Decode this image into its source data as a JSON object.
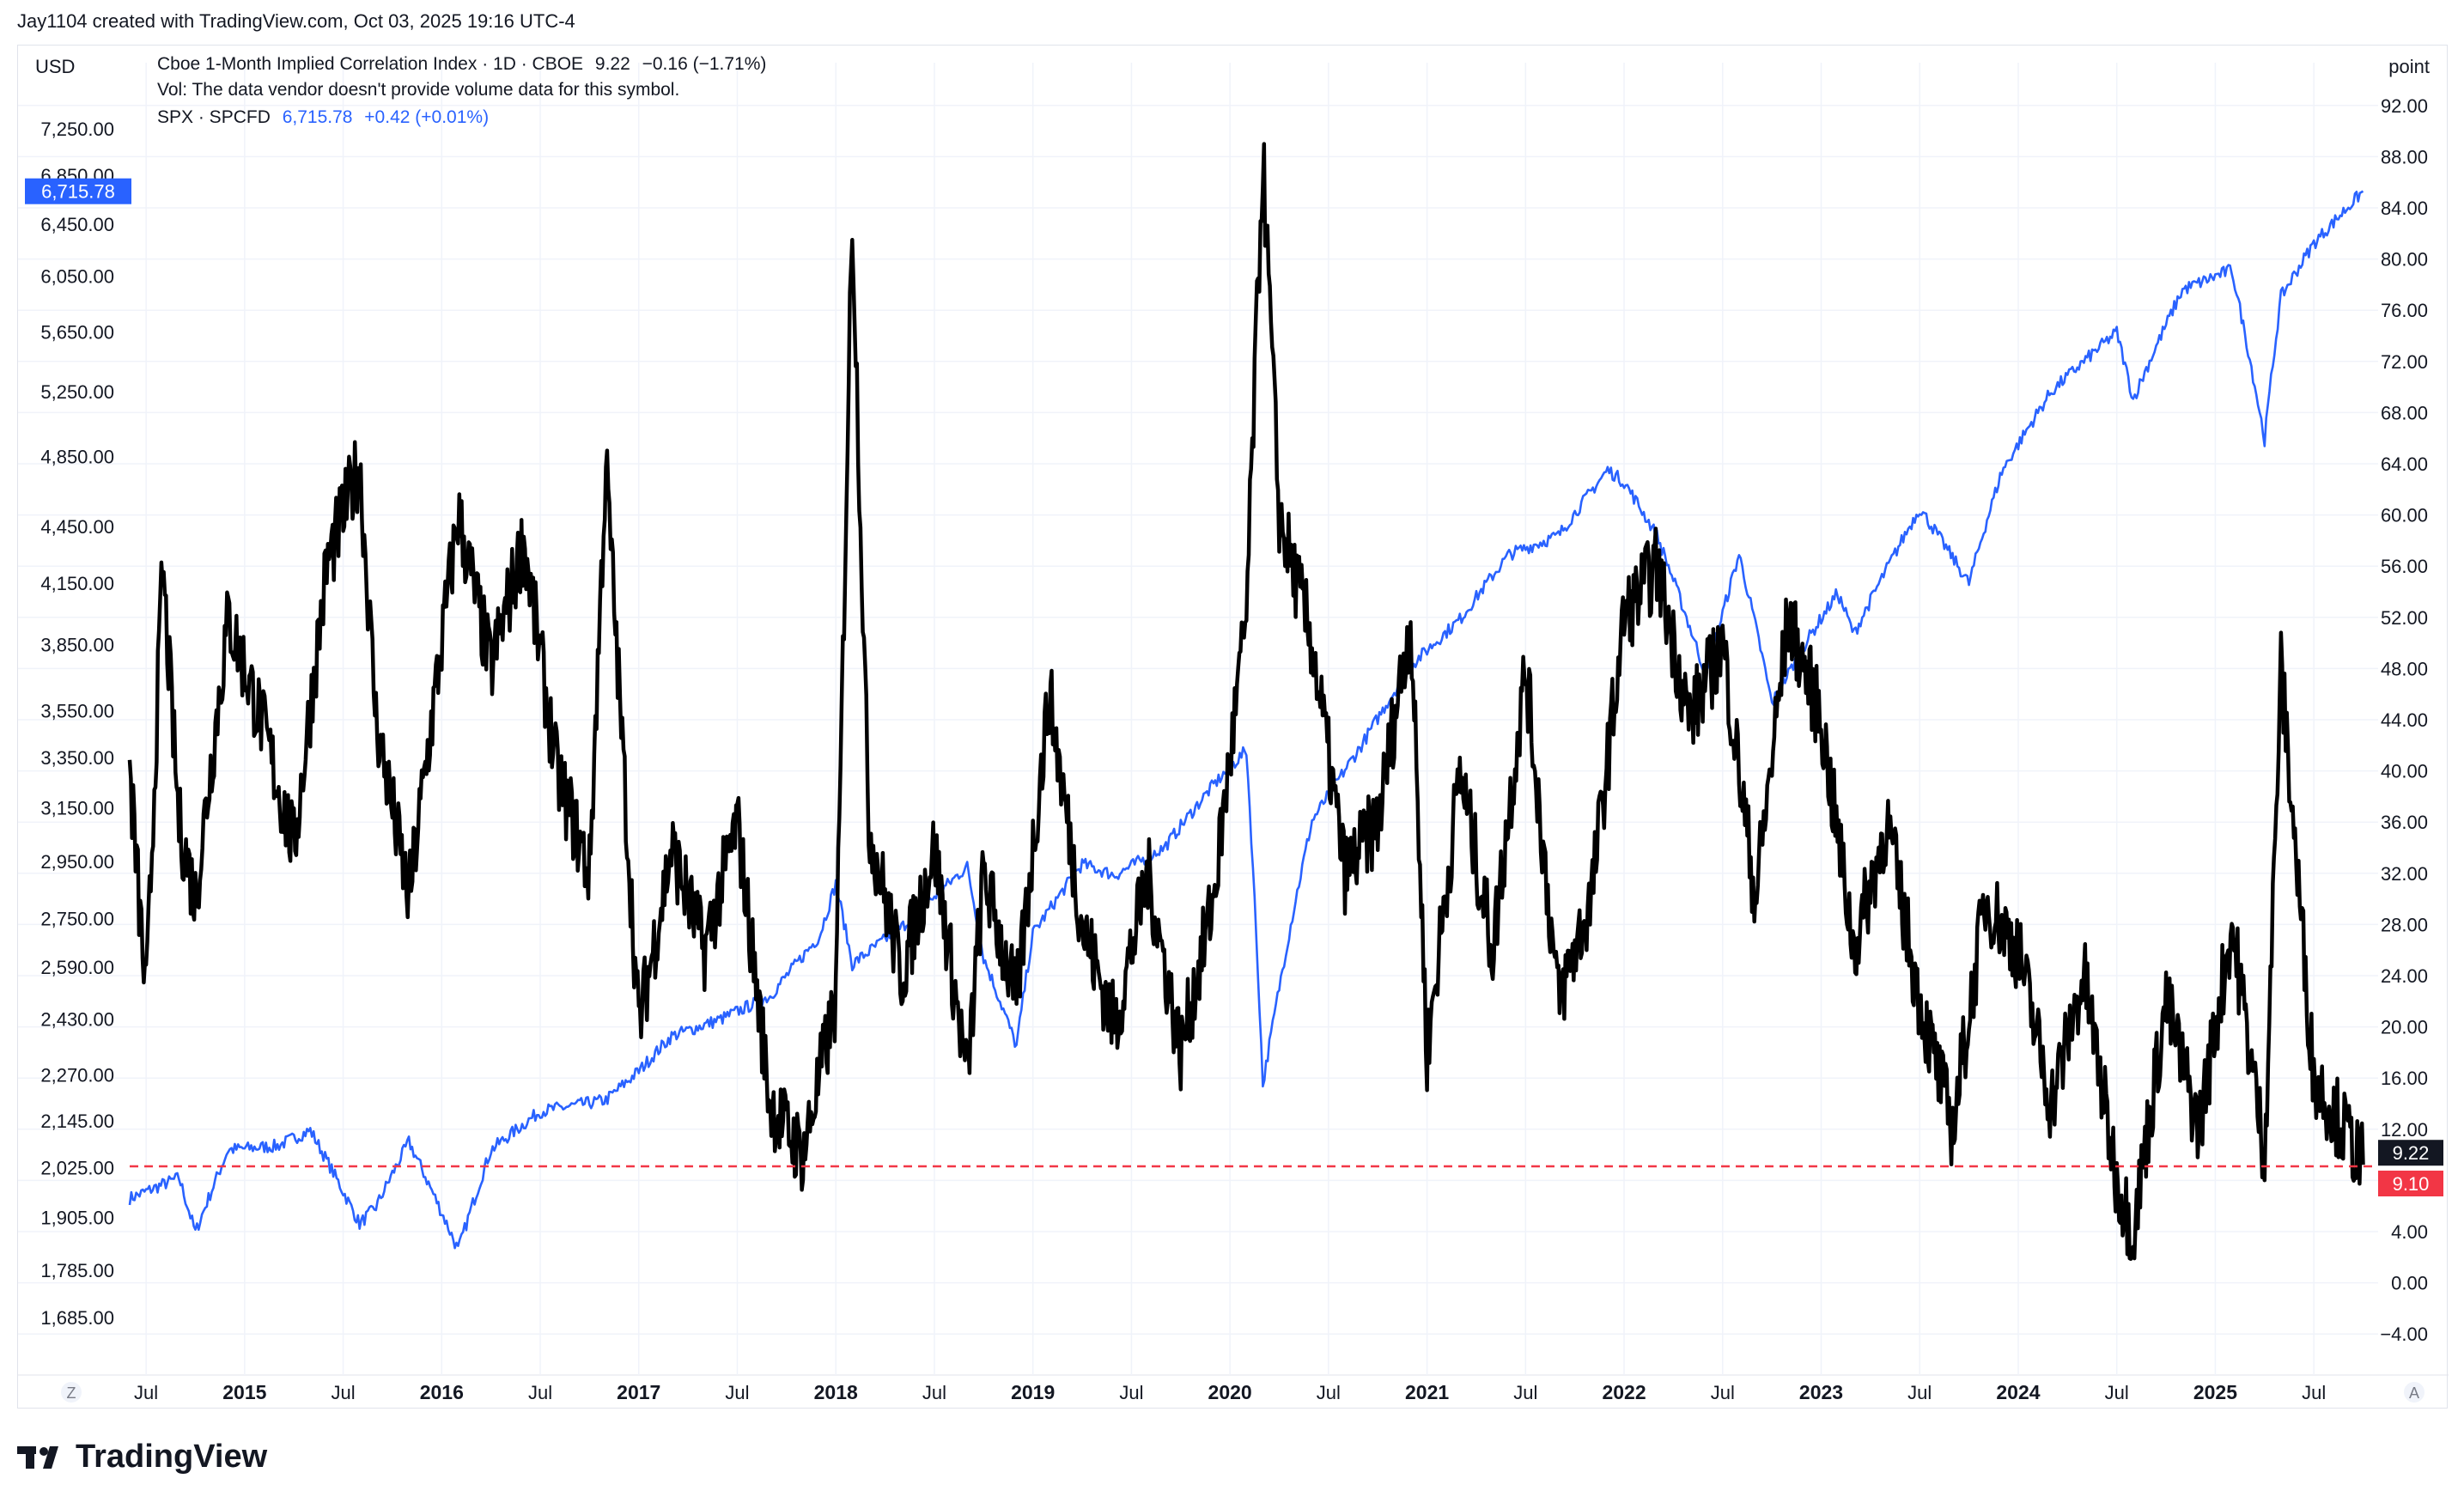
{
  "header": {
    "attribution": "Jay1104 created with TradingView.com, Oct 03, 2025 19:16 UTC-4"
  },
  "left_axis": {
    "currency": "USD",
    "last_price_badge": "6,715.78",
    "ticks": [
      "7,250.00",
      "6,850.00",
      "6,450.00",
      "6,050.00",
      "5,650.00",
      "5,250.00",
      "4,850.00",
      "4,450.00",
      "4,150.00",
      "3,850.00",
      "3,550.00",
      "3,350.00",
      "3,150.00",
      "2,950.00",
      "2,750.00",
      "2,590.00",
      "2,430.00",
      "2,270.00",
      "2,145.00",
      "2,025.00",
      "1,905.00",
      "1,785.00",
      "1,685.00"
    ]
  },
  "right_axis": {
    "unit": "point",
    "ticks": [
      "92.00",
      "88.00",
      "84.00",
      "80.00",
      "76.00",
      "72.00",
      "68.00",
      "64.00",
      "60.00",
      "56.00",
      "52.00",
      "48.00",
      "44.00",
      "40.00",
      "36.00",
      "32.00",
      "28.00",
      "24.00",
      "20.00",
      "16.00",
      "12.00",
      "8.00",
      "4.00",
      "0.00",
      "−4.00"
    ],
    "last_value_badge": "9.22",
    "line_value_badge": "9.10"
  },
  "legend": {
    "row1": {
      "name": "Cboe 1-Month Implied Correlation Index · 1D · CBOE",
      "value": "9.22",
      "change": "−0.16 (−1.71%)"
    },
    "row2": {
      "text": "Vol: The data vendor doesn't provide volume data for this symbol."
    },
    "row3": {
      "name": "SPX · SPCFD",
      "value": "6,715.78",
      "change": "+0.42 (+0.01%)"
    }
  },
  "x_axis": {
    "ticks": [
      {
        "label": "Jul",
        "bold": false
      },
      {
        "label": "2015",
        "bold": true
      },
      {
        "label": "Jul",
        "bold": false
      },
      {
        "label": "2016",
        "bold": true
      },
      {
        "label": "Jul",
        "bold": false
      },
      {
        "label": "2017",
        "bold": true
      },
      {
        "label": "Jul",
        "bold": false
      },
      {
        "label": "2018",
        "bold": true
      },
      {
        "label": "Jul",
        "bold": false
      },
      {
        "label": "2019",
        "bold": true
      },
      {
        "label": "Jul",
        "bold": false
      },
      {
        "label": "2020",
        "bold": true
      },
      {
        "label": "Jul",
        "bold": false
      },
      {
        "label": "2021",
        "bold": true
      },
      {
        "label": "Jul",
        "bold": false
      },
      {
        "label": "2022",
        "bold": true
      },
      {
        "label": "Jul",
        "bold": false
      },
      {
        "label": "2023",
        "bold": true
      },
      {
        "label": "Jul",
        "bold": false
      },
      {
        "label": "2024",
        "bold": true
      },
      {
        "label": "Jul",
        "bold": false
      },
      {
        "label": "2025",
        "bold": true
      },
      {
        "label": "Jul",
        "bold": false
      }
    ],
    "left_button": "Z",
    "right_button": "A"
  },
  "brand": {
    "name": "TradingView"
  },
  "colors": {
    "spx": "#2962ff",
    "corr": "#000000",
    "hline": "#f23645",
    "grid": "#f0f3fa",
    "badge_dark": "#131722"
  },
  "chart_data": {
    "type": "line",
    "left_scale": "log",
    "x_range": [
      "2014-06",
      "2025-10"
    ],
    "series": [
      {
        "name": "SPX · SPCFD",
        "axis": "left",
        "x": [
          "2014-06",
          "2014-09",
          "2014-10",
          "2014-12",
          "2015-03",
          "2015-05",
          "2015-08",
          "2015-09",
          "2015-11",
          "2016-02",
          "2016-04",
          "2016-07",
          "2016-11",
          "2017-01",
          "2017-03",
          "2017-06",
          "2017-09",
          "2017-12",
          "2018-01",
          "2018-02",
          "2018-05",
          "2018-09",
          "2018-10",
          "2018-12",
          "2019-01",
          "2019-04",
          "2019-06",
          "2019-09",
          "2019-12",
          "2020-02",
          "2020-03",
          "2020-06",
          "2020-09",
          "2020-12",
          "2021-03",
          "2021-06",
          "2021-09",
          "2021-12",
          "2022-01",
          "2022-03",
          "2022-06",
          "2022-08",
          "2022-10",
          "2022-12",
          "2023-02",
          "2023-03",
          "2023-07",
          "2023-10",
          "2023-12",
          "2024-03",
          "2024-07",
          "2024-08",
          "2024-11",
          "2025-02",
          "2025-04",
          "2025-05",
          "2025-07",
          "2025-10"
        ],
        "values": [
          1950,
          2000,
          1870,
          2070,
          2080,
          2120,
          1890,
          1930,
          2090,
          1830,
          2070,
          2170,
          2200,
          2280,
          2380,
          2430,
          2500,
          2690,
          2870,
          2600,
          2720,
          2930,
          2620,
          2350,
          2700,
          2940,
          2900,
          3000,
          3240,
          3380,
          2240,
          3100,
          3400,
          3750,
          3970,
          4300,
          4400,
          4770,
          4700,
          4400,
          3700,
          4300,
          3580,
          3850,
          4100,
          3900,
          4550,
          4150,
          4760,
          5250,
          5650,
          5200,
          5950,
          6100,
          4950,
          5900,
          6300,
          6715.78
        ]
      },
      {
        "name": "Cboe 1-Month Implied Correlation Index",
        "axis": "right",
        "x": [
          "2014-06",
          "2014-07",
          "2014-08",
          "2014-09",
          "2014-10",
          "2014-12",
          "2015-02",
          "2015-04",
          "2015-06",
          "2015-08",
          "2015-09",
          "2015-11",
          "2016-02",
          "2016-04",
          "2016-06",
          "2016-08",
          "2016-10",
          "2016-11",
          "2017-01",
          "2017-03",
          "2017-05",
          "2017-07",
          "2017-09",
          "2017-11",
          "2018-01",
          "2018-02",
          "2018-03",
          "2018-05",
          "2018-07",
          "2018-09",
          "2018-10",
          "2018-12",
          "2019-02",
          "2019-04",
          "2019-06",
          "2019-08",
          "2019-10",
          "2019-12",
          "2020-02",
          "2020-03",
          "2020-04",
          "2020-06",
          "2020-08",
          "2020-10",
          "2020-12",
          "2021-01",
          "2021-03",
          "2021-05",
          "2021-07",
          "2021-09",
          "2021-11",
          "2022-01",
          "2022-03",
          "2022-05",
          "2022-07",
          "2022-09",
          "2022-11",
          "2023-01",
          "2023-03",
          "2023-05",
          "2023-07",
          "2023-09",
          "2023-11",
          "2024-01",
          "2024-03",
          "2024-05",
          "2024-07",
          "2024-08",
          "2024-10",
          "2024-12",
          "2025-02",
          "2025-04",
          "2025-05",
          "2025-07",
          "2025-08",
          "2025-10"
        ],
        "values": [
          40,
          22,
          56,
          36,
          30,
          52,
          44,
          34,
          56,
          64,
          44,
          30,
          60,
          48,
          58,
          40,
          32,
          64,
          20,
          34,
          26,
          36,
          14,
          10,
          22,
          84,
          36,
          24,
          34,
          16,
          32,
          22,
          46,
          28,
          20,
          32,
          18,
          30,
          52,
          88,
          60,
          50,
          32,
          36,
          52,
          18,
          40,
          26,
          48,
          22,
          30,
          52,
          56,
          44,
          50,
          30,
          52,
          44,
          26,
          36,
          22,
          12,
          30,
          26,
          14,
          24,
          8,
          4,
          22,
          12,
          28,
          10,
          48,
          16,
          14,
          9.22
        ]
      }
    ],
    "reference_line": {
      "axis": "right",
      "value": 9.1
    }
  }
}
